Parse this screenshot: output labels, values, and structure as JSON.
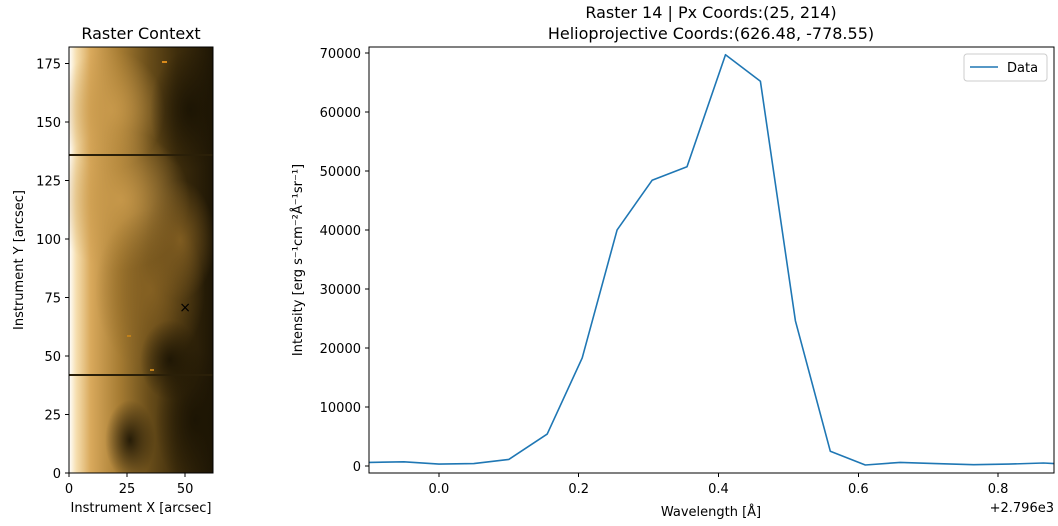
{
  "left_panel": {
    "title": "Raster Context",
    "xlabel": "Instrument X [arcsec]",
    "ylabel": "Instrument Y [arcsec]",
    "xticks": [
      "0",
      "25",
      "50"
    ],
    "yticks": [
      "0",
      "25",
      "50",
      "75",
      "100",
      "125",
      "150",
      "175"
    ],
    "marker_glyph": "×",
    "marker_color": "#ffa500",
    "colormap": "sdo-aia-1600-like (gold/black)"
  },
  "right_panel": {
    "title_line1": "Raster 14 | Px Coords:(25, 214)",
    "title_line2": "Helioprojective Coords:(626.48, -778.55)",
    "xlabel": "Wavelength [Å]",
    "ylabel": "Intensity [erg s⁻¹cm⁻²Å⁻¹sr⁻¹]",
    "offset_text": "+2.796e3",
    "xticks": [
      "0.0",
      "0.2",
      "0.4",
      "0.6",
      "0.8"
    ],
    "yticks": [
      "0",
      "10000",
      "20000",
      "30000",
      "40000",
      "50000",
      "60000",
      "70000"
    ],
    "legend_label": "Data",
    "line_color": "#1f77b4"
  },
  "chart_data": [
    {
      "type": "heatmap",
      "title": "Raster Context",
      "xlabel": "Instrument X [arcsec]",
      "ylabel": "Instrument Y [arcsec]",
      "xlim": [
        0,
        62
      ],
      "ylim": [
        0,
        182
      ],
      "marker": {
        "x": 50,
        "y": 71,
        "label": "×"
      },
      "dark_rows_y": [
        136,
        42
      ]
    },
    {
      "type": "line",
      "title": "Raster 14 | Px Coords:(25, 214)\nHelioprojective Coords:(626.48, -778.55)",
      "xlabel": "Wavelength [Å]",
      "ylabel": "Intensity [erg s⁻¹cm⁻²Å⁻¹sr⁻¹]",
      "x_offset": 2796,
      "xlim": [
        -0.1,
        0.88
      ],
      "ylim": [
        -1200,
        71000
      ],
      "grid": false,
      "legend": "top-right",
      "series": [
        {
          "name": "Data",
          "x": [
            -0.1,
            -0.05,
            0.0,
            0.05,
            0.1,
            0.155,
            0.205,
            0.255,
            0.305,
            0.355,
            0.41,
            0.46,
            0.51,
            0.56,
            0.61,
            0.66,
            0.71,
            0.765,
            0.815,
            0.865,
            0.88
          ],
          "y": [
            600,
            700,
            300,
            400,
            1100,
            5400,
            18300,
            40000,
            48400,
            50700,
            69700,
            65200,
            24600,
            2500,
            150,
            600,
            400,
            200,
            300,
            500,
            400
          ]
        }
      ]
    }
  ]
}
